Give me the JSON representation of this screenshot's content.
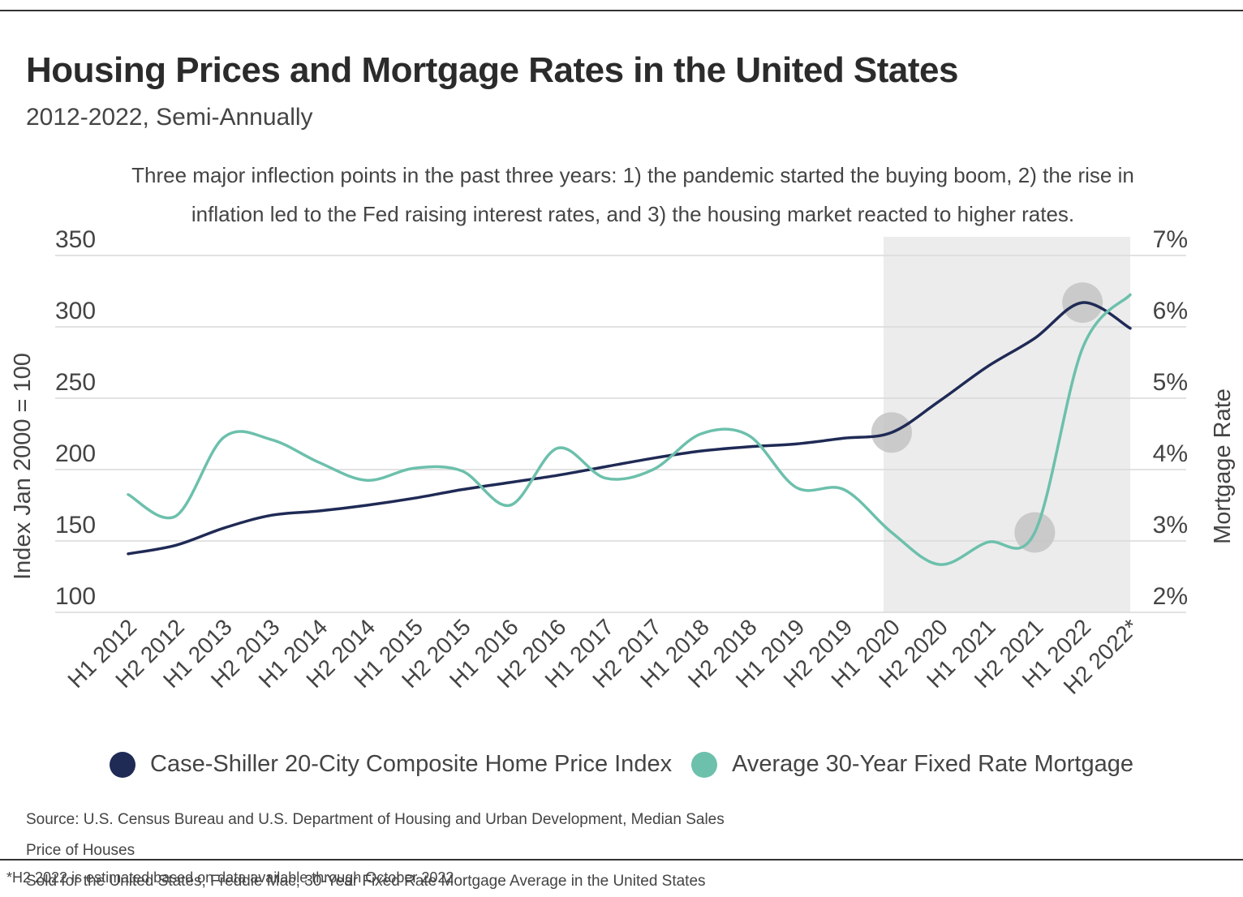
{
  "title": "Housing Prices and Mortgage Rates in the United States",
  "subtitle": "2012-2022, Semi-Annually",
  "note": "Three major inflection points in the past three years: 1) the pandemic started the buying boom, 2) the rise in inflation led to the Fed raising interest rates, and 3) the housing market reacted to higher rates.",
  "source_line1": "Source:  U.S. Census Bureau and U.S. Department of Housing and Urban Development, Median Sales Price of Houses",
  "source_line2": "Sold for the United States; Freddie Mac, 30-Year Fixed Rate Mortgage Average in the United States",
  "footnote": "*H2 2022 is estimated based on data available through October 2022",
  "colors": {
    "index_series": "#1f2a55",
    "mortgage_series": "#6cc0ac",
    "highlight_band": "#ececec",
    "marker": "#c4c4c4",
    "grid": "#d9d9d9",
    "text": "#444444"
  },
  "chart_data": {
    "type": "line",
    "title": "Housing Prices and Mortgage Rates in the United States",
    "subtitle": "2012-2022, Semi-Annually",
    "ylabel": "Index Jan 2000 = 100",
    "y2label": "Mortgage Rate",
    "categories": [
      "H1 2012",
      "H2 2012",
      "H1 2013",
      "H2 2013",
      "H1 2014",
      "H2 2014",
      "H1 2015",
      "H2 2015",
      "H1 2016",
      "H2 2016",
      "H1 2017",
      "H2 2017",
      "H1 2018",
      "H2 2018",
      "H1 2019",
      "H2 2019",
      "H1 2020",
      "H2 2020",
      "H1 2021",
      "H2 2021",
      "H1 2022",
      "H2 2022*"
    ],
    "ylim": [
      100,
      350
    ],
    "yticks": [
      100,
      150,
      200,
      250,
      300,
      350
    ],
    "y2lim": [
      2,
      7
    ],
    "y2ticks": [
      "2%",
      "3%",
      "4%",
      "5%",
      "6%",
      "7%"
    ],
    "grid": true,
    "legend_position": "bottom",
    "highlight_range": [
      "H1 2020",
      "H2 2022*"
    ],
    "series": [
      {
        "name": "Case-Shiller 20-City Composite Home Price Index",
        "axis": "left",
        "values": [
          141,
          147,
          159,
          168,
          171,
          175,
          180,
          186,
          191,
          196,
          202,
          208,
          213,
          216,
          218,
          222,
          226,
          248,
          272,
          292,
          317,
          299
        ]
      },
      {
        "name": "Average 30-Year Fixed Rate Mortgage",
        "axis": "right",
        "values": [
          3.65,
          3.35,
          4.45,
          4.42,
          4.1,
          3.85,
          4.02,
          3.98,
          3.5,
          4.3,
          3.88,
          4.0,
          4.5,
          4.48,
          3.75,
          3.72,
          3.12,
          2.67,
          2.98,
          3.12,
          5.7,
          6.45
        ]
      }
    ],
    "annotations": [
      {
        "series": 0,
        "category": "H1 2020",
        "value": 226
      },
      {
        "series": 1,
        "category": "H2 2021",
        "value": 3.12
      },
      {
        "series": 0,
        "category": "H1 2022",
        "value": 317
      }
    ]
  }
}
